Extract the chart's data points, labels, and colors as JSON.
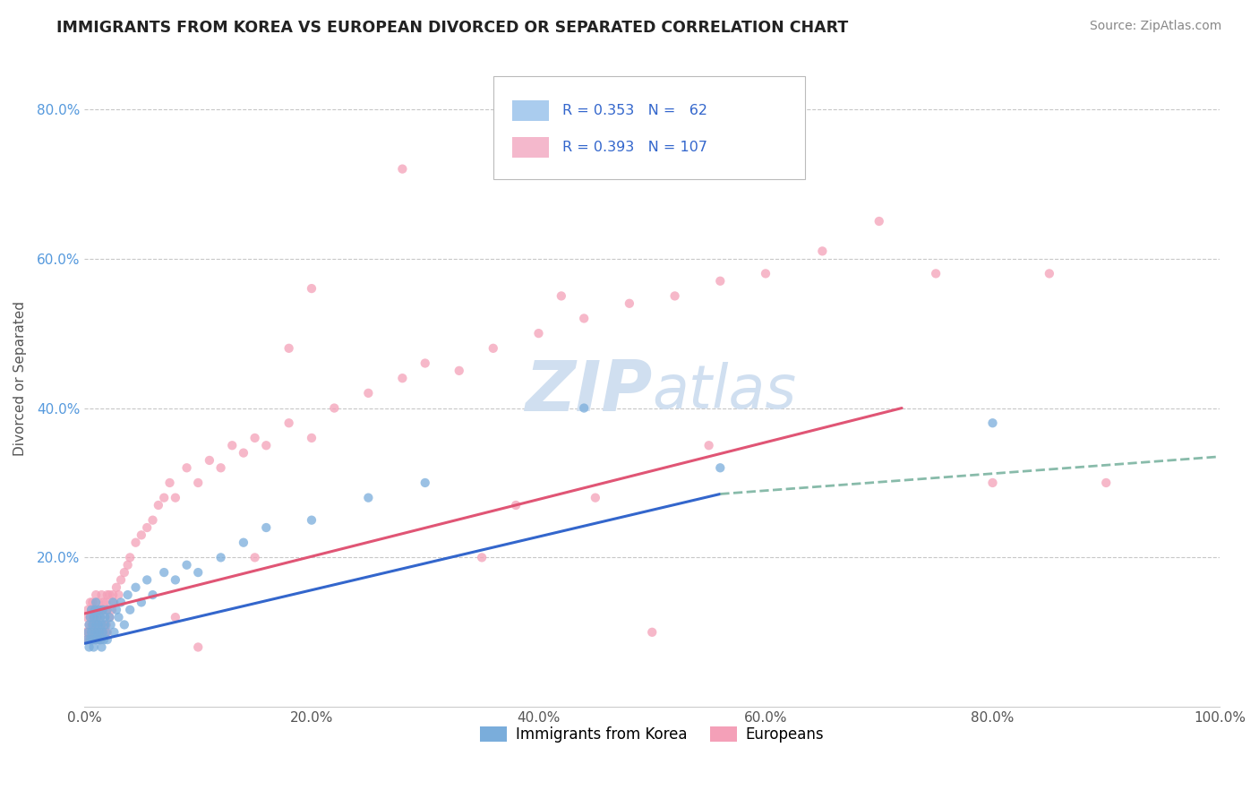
{
  "title": "IMMIGRANTS FROM KOREA VS EUROPEAN DIVORCED OR SEPARATED CORRELATION CHART",
  "source": "Source: ZipAtlas.com",
  "ylabel": "Divorced or Separated",
  "xlim": [
    0.0,
    1.0
  ],
  "ylim": [
    0.0,
    0.88
  ],
  "xtick_labels": [
    "0.0%",
    "20.0%",
    "40.0%",
    "60.0%",
    "80.0%",
    "100.0%"
  ],
  "xtick_positions": [
    0.0,
    0.2,
    0.4,
    0.6,
    0.8,
    1.0
  ],
  "ytick_labels": [
    "20.0%",
    "40.0%",
    "60.0%",
    "80.0%"
  ],
  "ytick_positions": [
    0.2,
    0.4,
    0.6,
    0.8
  ],
  "background_color": "#ffffff",
  "grid_color": "#c8c8c8",
  "blue_color": "#7aaddb",
  "pink_color": "#f4a0b8",
  "blue_line_color": "#3366cc",
  "pink_line_color": "#e05575",
  "dash_line_color": "#88bbaa",
  "watermark_color": "#d0dff0",
  "legend_text_color": "#3366cc",
  "title_color": "#222222",
  "source_color": "#888888",
  "ytick_color": "#5599dd",
  "xtick_color": "#555555",
  "ylabel_color": "#555555",
  "pink_line_solid_end": 0.72,
  "blue_line_solid_end": 0.56,
  "blue_line_dash_end": 1.0,
  "pink_line_start_y": 0.125,
  "pink_line_end_y": 0.4,
  "blue_line_start_y": 0.085,
  "blue_line_end_solid_y": 0.285,
  "blue_line_end_dash_y": 0.335,
  "korea_scatter_x": [
    0.002,
    0.003,
    0.004,
    0.004,
    0.005,
    0.005,
    0.006,
    0.006,
    0.007,
    0.007,
    0.008,
    0.008,
    0.009,
    0.009,
    0.01,
    0.01,
    0.01,
    0.011,
    0.011,
    0.012,
    0.012,
    0.013,
    0.013,
    0.014,
    0.014,
    0.015,
    0.015,
    0.016,
    0.016,
    0.017,
    0.018,
    0.018,
    0.019,
    0.02,
    0.02,
    0.022,
    0.023,
    0.025,
    0.026,
    0.028,
    0.03,
    0.032,
    0.035,
    0.038,
    0.04,
    0.045,
    0.05,
    0.055,
    0.06,
    0.07,
    0.08,
    0.09,
    0.1,
    0.12,
    0.14,
    0.16,
    0.2,
    0.25,
    0.3,
    0.44,
    0.56,
    0.8
  ],
  "korea_scatter_y": [
    0.09,
    0.1,
    0.08,
    0.11,
    0.09,
    0.12,
    0.1,
    0.13,
    0.09,
    0.11,
    0.08,
    0.12,
    0.1,
    0.13,
    0.09,
    0.11,
    0.14,
    0.1,
    0.12,
    0.09,
    0.11,
    0.1,
    0.13,
    0.09,
    0.12,
    0.08,
    0.11,
    0.1,
    0.13,
    0.09,
    0.11,
    0.12,
    0.1,
    0.09,
    0.13,
    0.12,
    0.11,
    0.14,
    0.1,
    0.13,
    0.12,
    0.14,
    0.11,
    0.15,
    0.13,
    0.16,
    0.14,
    0.17,
    0.15,
    0.18,
    0.17,
    0.19,
    0.18,
    0.2,
    0.22,
    0.24,
    0.25,
    0.28,
    0.3,
    0.4,
    0.32,
    0.38
  ],
  "european_scatter_x": [
    0.001,
    0.002,
    0.002,
    0.003,
    0.003,
    0.004,
    0.004,
    0.005,
    0.005,
    0.005,
    0.006,
    0.006,
    0.006,
    0.007,
    0.007,
    0.007,
    0.008,
    0.008,
    0.008,
    0.009,
    0.009,
    0.01,
    0.01,
    0.01,
    0.01,
    0.011,
    0.011,
    0.012,
    0.012,
    0.012,
    0.013,
    0.013,
    0.014,
    0.014,
    0.015,
    0.015,
    0.015,
    0.016,
    0.016,
    0.017,
    0.017,
    0.018,
    0.018,
    0.019,
    0.019,
    0.02,
    0.02,
    0.02,
    0.022,
    0.022,
    0.024,
    0.025,
    0.026,
    0.028,
    0.03,
    0.032,
    0.035,
    0.038,
    0.04,
    0.045,
    0.05,
    0.055,
    0.06,
    0.065,
    0.07,
    0.075,
    0.08,
    0.09,
    0.1,
    0.11,
    0.12,
    0.13,
    0.14,
    0.15,
    0.16,
    0.18,
    0.2,
    0.22,
    0.25,
    0.28,
    0.3,
    0.33,
    0.36,
    0.4,
    0.44,
    0.48,
    0.52,
    0.56,
    0.6,
    0.65,
    0.7,
    0.75,
    0.8,
    0.85,
    0.9,
    0.15,
    0.1,
    0.08,
    0.42,
    0.5,
    0.38,
    0.28,
    0.2,
    0.18,
    0.35,
    0.45,
    0.55
  ],
  "european_scatter_y": [
    0.1,
    0.09,
    0.12,
    0.1,
    0.13,
    0.09,
    0.11,
    0.1,
    0.12,
    0.14,
    0.09,
    0.11,
    0.13,
    0.1,
    0.12,
    0.14,
    0.09,
    0.11,
    0.13,
    0.1,
    0.12,
    0.09,
    0.11,
    0.13,
    0.15,
    0.1,
    0.12,
    0.09,
    0.11,
    0.14,
    0.1,
    0.13,
    0.09,
    0.12,
    0.1,
    0.13,
    0.15,
    0.1,
    0.13,
    0.11,
    0.14,
    0.1,
    0.13,
    0.11,
    0.14,
    0.1,
    0.13,
    0.15,
    0.12,
    0.15,
    0.13,
    0.15,
    0.14,
    0.16,
    0.15,
    0.17,
    0.18,
    0.19,
    0.2,
    0.22,
    0.23,
    0.24,
    0.25,
    0.27,
    0.28,
    0.3,
    0.28,
    0.32,
    0.3,
    0.33,
    0.32,
    0.35,
    0.34,
    0.36,
    0.35,
    0.38,
    0.36,
    0.4,
    0.42,
    0.44,
    0.46,
    0.45,
    0.48,
    0.5,
    0.52,
    0.54,
    0.55,
    0.57,
    0.58,
    0.61,
    0.65,
    0.58,
    0.3,
    0.58,
    0.3,
    0.2,
    0.08,
    0.12,
    0.55,
    0.1,
    0.27,
    0.72,
    0.56,
    0.48,
    0.2,
    0.28,
    0.35
  ]
}
